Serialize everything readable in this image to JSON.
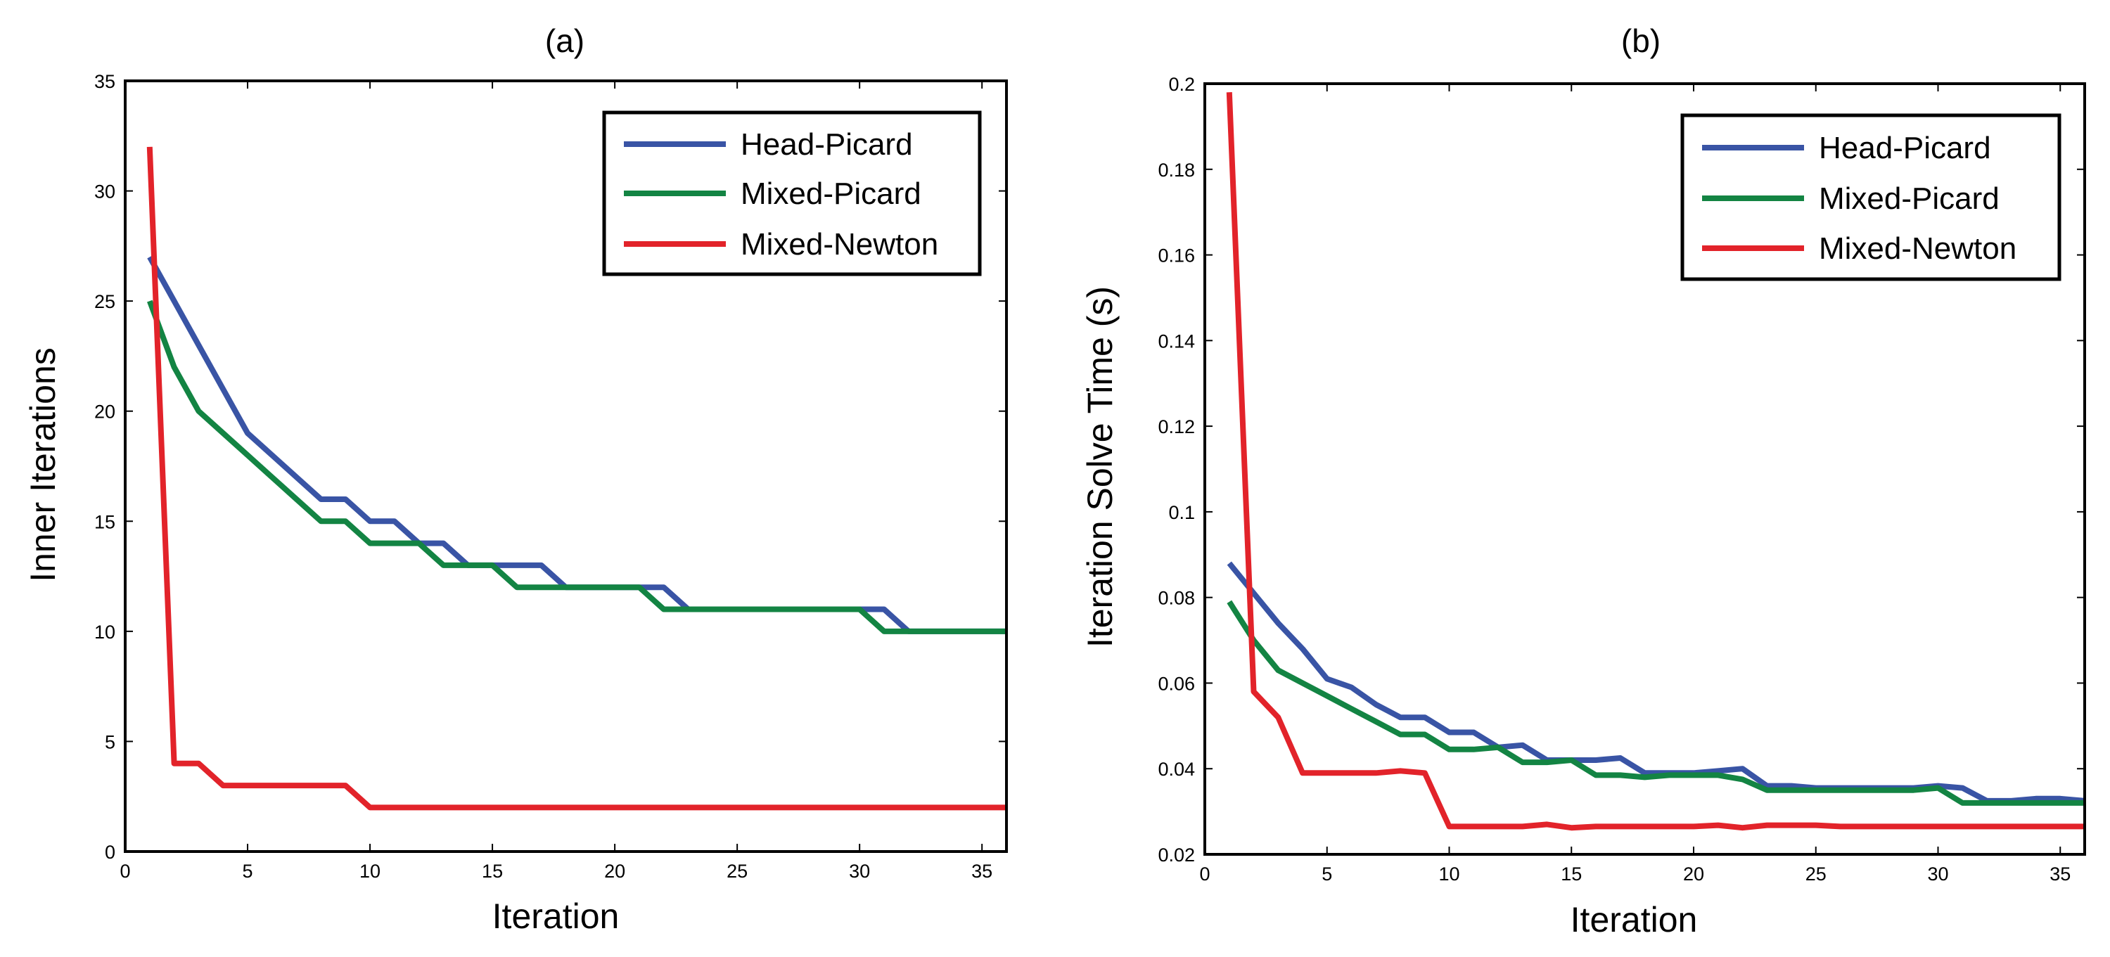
{
  "colors": {
    "Head-Picard": "#3954a5",
    "Mixed-Picard": "#138443",
    "Mixed-Newton": "#e2232a"
  },
  "chart_data": [
    {
      "type": "line",
      "title": "(a)",
      "xlabel": "Iteration",
      "ylabel": "Inner Iterations",
      "xlim": [
        0,
        36
      ],
      "ylim": [
        0,
        35
      ],
      "xticks": [
        0,
        5,
        10,
        15,
        20,
        25,
        30,
        35
      ],
      "yticks": [
        0,
        5,
        10,
        15,
        20,
        25,
        30,
        35
      ],
      "xtick_labels": [
        "0",
        "5",
        "10",
        "15",
        "20",
        "25",
        "30",
        "35"
      ],
      "ytick_labels": [
        "0",
        "5",
        "10",
        "15",
        "20",
        "25",
        "30",
        "35"
      ],
      "grid": false,
      "legend_position": "top-right",
      "series": [
        {
          "name": "Head-Picard",
          "x": [
            1,
            2,
            3,
            4,
            5,
            6,
            7,
            8,
            9,
            10,
            11,
            12,
            13,
            14,
            15,
            16,
            17,
            18,
            19,
            20,
            21,
            22,
            23,
            24,
            25,
            26,
            27,
            28,
            29,
            30,
            31,
            32,
            33,
            34,
            35,
            36
          ],
          "y": [
            27,
            25,
            23,
            21,
            19,
            18,
            17,
            16,
            16,
            15,
            15,
            14,
            14,
            13,
            13,
            13,
            13,
            12,
            12,
            12,
            12,
            12,
            11,
            11,
            11,
            11,
            11,
            11,
            11,
            11,
            11,
            10,
            10,
            10,
            10,
            10
          ]
        },
        {
          "name": "Mixed-Picard",
          "x": [
            1,
            2,
            3,
            4,
            5,
            6,
            7,
            8,
            9,
            10,
            11,
            12,
            13,
            14,
            15,
            16,
            17,
            18,
            19,
            20,
            21,
            22,
            23,
            24,
            25,
            26,
            27,
            28,
            29,
            30,
            31,
            32,
            33,
            34,
            35,
            36
          ],
          "y": [
            25,
            22,
            20,
            19,
            18,
            17,
            16,
            15,
            15,
            14,
            14,
            14,
            13,
            13,
            13,
            12,
            12,
            12,
            12,
            12,
            12,
            11,
            11,
            11,
            11,
            11,
            11,
            11,
            11,
            11,
            10,
            10,
            10,
            10,
            10,
            10
          ]
        },
        {
          "name": "Mixed-Newton",
          "x": [
            1,
            2,
            3,
            4,
            5,
            6,
            7,
            8,
            9,
            10,
            11,
            12,
            13,
            14,
            15,
            16,
            17,
            18,
            19,
            20,
            21,
            22,
            23,
            24,
            25,
            26,
            27,
            28,
            29,
            30,
            31,
            32,
            33,
            34,
            35,
            36
          ],
          "y": [
            32,
            4,
            4,
            3,
            3,
            3,
            3,
            3,
            3,
            2,
            2,
            2,
            2,
            2,
            2,
            2,
            2,
            2,
            2,
            2,
            2,
            2,
            2,
            2,
            2,
            2,
            2,
            2,
            2,
            2,
            2,
            2,
            2,
            2,
            2,
            2
          ]
        }
      ]
    },
    {
      "type": "line",
      "title": "(b)",
      "xlabel": "Iteration",
      "ylabel": "Iteration Solve Time (s)",
      "xlim": [
        0,
        36
      ],
      "ylim": [
        0.02,
        0.2
      ],
      "xticks": [
        0,
        5,
        10,
        15,
        20,
        25,
        30,
        35
      ],
      "yticks": [
        0.02,
        0.04,
        0.06,
        0.08,
        0.1,
        0.12,
        0.14,
        0.16,
        0.18,
        0.2
      ],
      "xtick_labels": [
        "0",
        "5",
        "10",
        "15",
        "20",
        "25",
        "30",
        "35"
      ],
      "ytick_labels": [
        "0.02",
        "0.04",
        "0.06",
        "0.08",
        "0.1",
        "0.12",
        "0.14",
        "0.16",
        "0.18",
        "0.2"
      ],
      "grid": false,
      "legend_position": "top-right",
      "series": [
        {
          "name": "Head-Picard",
          "x": [
            1,
            2,
            3,
            4,
            5,
            6,
            7,
            8,
            9,
            10,
            11,
            12,
            13,
            14,
            15,
            16,
            17,
            18,
            19,
            20,
            21,
            22,
            23,
            24,
            25,
            26,
            27,
            28,
            29,
            30,
            31,
            32,
            33,
            34,
            35,
            36
          ],
          "y": [
            0.088,
            0.081,
            0.074,
            0.068,
            0.061,
            0.059,
            0.055,
            0.052,
            0.052,
            0.0485,
            0.0485,
            0.045,
            0.0455,
            0.042,
            0.042,
            0.042,
            0.0425,
            0.039,
            0.039,
            0.039,
            0.0395,
            0.04,
            0.036,
            0.036,
            0.0355,
            0.0355,
            0.0355,
            0.0355,
            0.0355,
            0.036,
            0.0355,
            0.0325,
            0.0325,
            0.033,
            0.033,
            0.0325
          ]
        },
        {
          "name": "Mixed-Picard",
          "x": [
            1,
            2,
            3,
            4,
            5,
            6,
            7,
            8,
            9,
            10,
            11,
            12,
            13,
            14,
            15,
            16,
            17,
            18,
            19,
            20,
            21,
            22,
            23,
            24,
            25,
            26,
            27,
            28,
            29,
            30,
            31,
            32,
            33,
            34,
            35,
            36
          ],
          "y": [
            0.079,
            0.07,
            0.063,
            0.06,
            0.057,
            0.054,
            0.051,
            0.048,
            0.048,
            0.0445,
            0.0445,
            0.045,
            0.0415,
            0.0415,
            0.042,
            0.0385,
            0.0385,
            0.038,
            0.0385,
            0.0385,
            0.0385,
            0.0375,
            0.035,
            0.035,
            0.035,
            0.035,
            0.035,
            0.035,
            0.035,
            0.0355,
            0.032,
            0.032,
            0.032,
            0.032,
            0.032,
            0.032
          ]
        },
        {
          "name": "Mixed-Newton",
          "x": [
            1,
            2,
            3,
            4,
            5,
            6,
            7,
            8,
            9,
            10,
            11,
            12,
            13,
            14,
            15,
            16,
            17,
            18,
            19,
            20,
            21,
            22,
            23,
            24,
            25,
            26,
            27,
            28,
            29,
            30,
            31,
            32,
            33,
            34,
            35,
            36
          ],
          "y": [
            0.198,
            0.058,
            0.052,
            0.039,
            0.039,
            0.039,
            0.039,
            0.0395,
            0.039,
            0.0265,
            0.0265,
            0.0265,
            0.0265,
            0.027,
            0.0262,
            0.0265,
            0.0265,
            0.0265,
            0.0265,
            0.0265,
            0.0268,
            0.0262,
            0.0268,
            0.0268,
            0.0268,
            0.0265,
            0.0265,
            0.0265,
            0.0265,
            0.0265,
            0.0265,
            0.0265,
            0.0265,
            0.0265,
            0.0265,
            0.0265
          ]
        }
      ]
    }
  ]
}
